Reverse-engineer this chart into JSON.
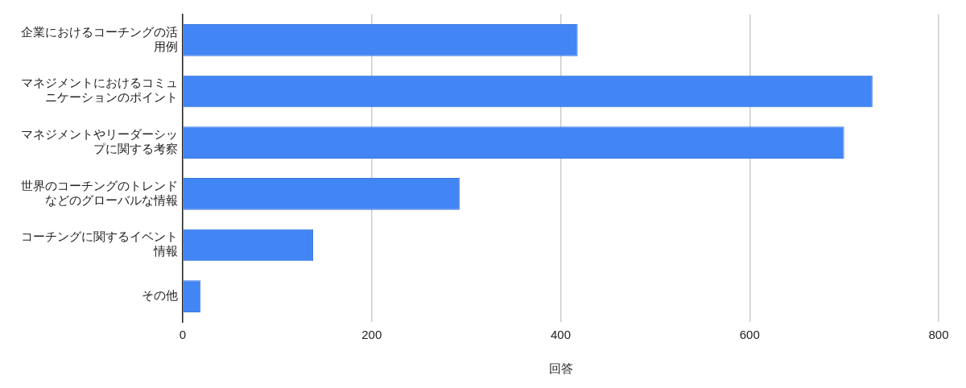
{
  "chart_data": {
    "type": "bar",
    "orientation": "horizontal",
    "xlabel": "回答",
    "categories": [
      "企業におけるコーチングの活用例",
      "マネジメントにおけるコミュニケーションのポイント",
      "マネジメントやリーダーシップに関する考察",
      "世界のコーチングのトレンドなどのグローバルな情報",
      "コーチングに関するイベント情報",
      "その他"
    ],
    "values": [
      418,
      730,
      700,
      293,
      138,
      19
    ],
    "color": "#4285f4",
    "xlim": [
      0,
      800
    ],
    "xticks": [
      0,
      200,
      400,
      600,
      800
    ],
    "grid": "x",
    "legend": false
  }
}
